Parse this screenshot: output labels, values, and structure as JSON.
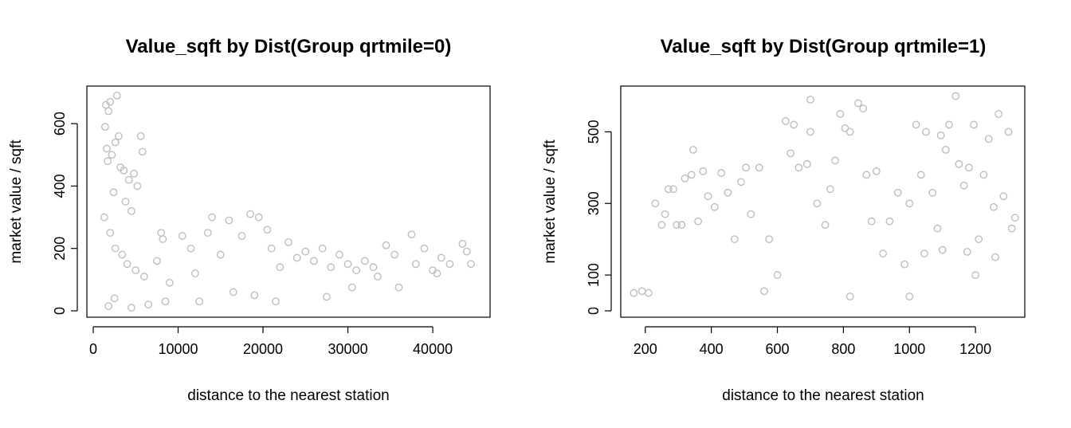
{
  "chart_data": [
    {
      "type": "scatter",
      "title": "Value_sqft by Dist(Group qrtmile=0)",
      "xlabel": "distance to the nearest station",
      "ylabel": "market value / sqft",
      "xlim": [
        0,
        46000
      ],
      "ylim": [
        0,
        700
      ],
      "xticks": [
        0,
        10000,
        20000,
        30000,
        40000
      ],
      "yticks": [
        0,
        200,
        400,
        600
      ],
      "marker": "open-circle",
      "color": "#bebebe",
      "series": [
        {
          "points": [
            [
              1500,
              660
            ],
            [
              1800,
              640
            ],
            [
              2000,
              670
            ],
            [
              2800,
              690
            ],
            [
              1400,
              590
            ],
            [
              3000,
              560
            ],
            [
              5600,
              560
            ],
            [
              2600,
              540
            ],
            [
              5800,
              510
            ],
            [
              1600,
              520
            ],
            [
              1700,
              480
            ],
            [
              2200,
              500
            ],
            [
              3200,
              460
            ],
            [
              3600,
              450
            ],
            [
              4200,
              420
            ],
            [
              4800,
              440
            ],
            [
              5200,
              400
            ],
            [
              2400,
              380
            ],
            [
              3800,
              350
            ],
            [
              4500,
              320
            ],
            [
              1300,
              300
            ],
            [
              2000,
              250
            ],
            [
              2600,
              200
            ],
            [
              3400,
              180
            ],
            [
              4000,
              150
            ],
            [
              5000,
              130
            ],
            [
              6000,
              110
            ],
            [
              7500,
              160
            ],
            [
              8000,
              250
            ],
            [
              8200,
              230
            ],
            [
              9000,
              90
            ],
            [
              10500,
              240
            ],
            [
              11500,
              200
            ],
            [
              12000,
              120
            ],
            [
              13500,
              250
            ],
            [
              14000,
              300
            ],
            [
              15000,
              180
            ],
            [
              16000,
              290
            ],
            [
              17500,
              240
            ],
            [
              18500,
              310
            ],
            [
              19500,
              300
            ],
            [
              20500,
              260
            ],
            [
              21000,
              200
            ],
            [
              22000,
              140
            ],
            [
              23000,
              220
            ],
            [
              24000,
              170
            ],
            [
              25000,
              190
            ],
            [
              26000,
              160
            ],
            [
              27000,
              200
            ],
            [
              28000,
              140
            ],
            [
              29000,
              180
            ],
            [
              30000,
              150
            ],
            [
              31000,
              130
            ],
            [
              32000,
              160
            ],
            [
              33000,
              140
            ],
            [
              34500,
              210
            ],
            [
              35500,
              180
            ],
            [
              36000,
              75
            ],
            [
              37500,
              245
            ],
            [
              38000,
              150
            ],
            [
              39000,
              200
            ],
            [
              40000,
              130
            ],
            [
              41000,
              170
            ],
            [
              42000,
              150
            ],
            [
              43500,
              215
            ],
            [
              44000,
              190
            ],
            [
              44500,
              150
            ],
            [
              19000,
              50
            ],
            [
              21500,
              30
            ],
            [
              16500,
              60
            ],
            [
              12500,
              30
            ],
            [
              27500,
              45
            ],
            [
              30500,
              75
            ],
            [
              33500,
              110
            ],
            [
              40500,
              120
            ],
            [
              2500,
              40
            ],
            [
              6500,
              20
            ],
            [
              8500,
              30
            ],
            [
              1800,
              15
            ],
            [
              4500,
              10
            ]
          ]
        }
      ]
    },
    {
      "type": "scatter",
      "title": "Value_sqft by Dist(Group qrtmile=1)",
      "xlabel": "distance to the nearest station",
      "ylabel": "market value / sqft",
      "xlim": [
        145,
        1330
      ],
      "ylim": [
        0,
        610
      ],
      "xticks": [
        200,
        400,
        600,
        800,
        1000,
        1200
      ],
      "yticks": [
        0,
        100,
        300,
        500
      ],
      "marker": "open-circle",
      "color": "#bebebe",
      "series": [
        {
          "points": [
            [
              165,
              50
            ],
            [
              190,
              55
            ],
            [
              210,
              50
            ],
            [
              230,
              300
            ],
            [
              250,
              240
            ],
            [
              260,
              270
            ],
            [
              270,
              340
            ],
            [
              285,
              340
            ],
            [
              295,
              240
            ],
            [
              310,
              240
            ],
            [
              320,
              370
            ],
            [
              340,
              380
            ],
            [
              345,
              450
            ],
            [
              360,
              250
            ],
            [
              375,
              390
            ],
            [
              390,
              320
            ],
            [
              410,
              290
            ],
            [
              430,
              385
            ],
            [
              450,
              330
            ],
            [
              470,
              200
            ],
            [
              490,
              360
            ],
            [
              505,
              400
            ],
            [
              520,
              270
            ],
            [
              545,
              400
            ],
            [
              575,
              200
            ],
            [
              600,
              100
            ],
            [
              625,
              530
            ],
            [
              640,
              440
            ],
            [
              650,
              520
            ],
            [
              665,
              400
            ],
            [
              690,
              410
            ],
            [
              700,
              500
            ],
            [
              700,
              590
            ],
            [
              720,
              300
            ],
            [
              745,
              240
            ],
            [
              760,
              340
            ],
            [
              775,
              420
            ],
            [
              790,
              550
            ],
            [
              805,
              510
            ],
            [
              820,
              500
            ],
            [
              845,
              580
            ],
            [
              860,
              565
            ],
            [
              870,
              380
            ],
            [
              885,
              250
            ],
            [
              900,
              390
            ],
            [
              920,
              160
            ],
            [
              940,
              250
            ],
            [
              965,
              330
            ],
            [
              985,
              130
            ],
            [
              1000,
              300
            ],
            [
              1020,
              520
            ],
            [
              1035,
              380
            ],
            [
              1050,
              500
            ],
            [
              1070,
              330
            ],
            [
              1085,
              230
            ],
            [
              1095,
              490
            ],
            [
              1110,
              450
            ],
            [
              1120,
              520
            ],
            [
              1140,
              600
            ],
            [
              1150,
              410
            ],
            [
              1165,
              350
            ],
            [
              1180,
              400
            ],
            [
              1195,
              520
            ],
            [
              1210,
              200
            ],
            [
              1225,
              380
            ],
            [
              1240,
              480
            ],
            [
              1255,
              290
            ],
            [
              1270,
              550
            ],
            [
              1285,
              320
            ],
            [
              1300,
              500
            ],
            [
              1310,
              230
            ],
            [
              1320,
              260
            ],
            [
              1045,
              160
            ],
            [
              1100,
              170
            ],
            [
              1175,
              165
            ],
            [
              1260,
              150
            ],
            [
              1200,
              100
            ],
            [
              560,
              55
            ],
            [
              820,
              40
            ],
            [
              1000,
              40
            ]
          ]
        }
      ]
    }
  ]
}
